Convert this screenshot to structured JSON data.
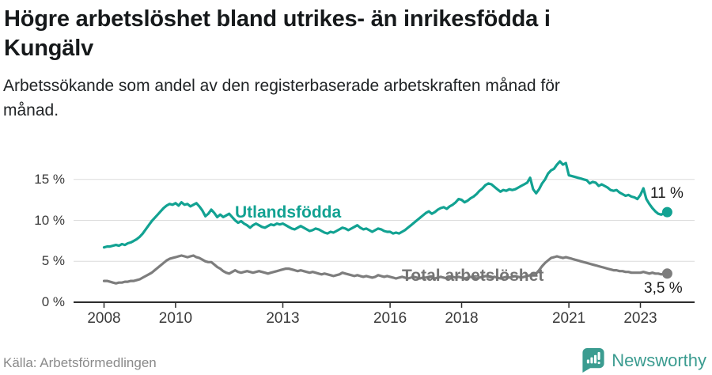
{
  "header": {
    "title_lines": [
      "Högre arbetslöshet bland utrikes- än inrikesfödda i",
      "Kungälv"
    ],
    "subtitle_lines": [
      "Arbetssökande som andel av den registerbaserade arbetskraften månad för",
      "månad."
    ]
  },
  "footer": {
    "source": "Källa: Arbetsförmedlingen",
    "logo_text": "Newsworthy"
  },
  "colors": {
    "foreign_born_line": "#12a292",
    "total_line": "#7d7d7d",
    "gridline": "#dcdcdc",
    "axis": "#2d2d2d",
    "logo_teal": "#3b9c90"
  },
  "chart_data": {
    "type": "line",
    "title": "Högre arbetslöshet bland utrikes- än inrikesfödda i Kungälv",
    "subtitle": "Arbetssökande som andel av den registerbaserade arbetskraften månad för månad.",
    "frequency": "monthly",
    "x_start": "2008-01",
    "x_end": "2023-10",
    "ylim": [
      0,
      17.5
    ],
    "grid": "horizontal",
    "y_ticks": [
      {
        "value": 0,
        "label": "0 %"
      },
      {
        "value": 5,
        "label": "5 %"
      },
      {
        "value": 10,
        "label": "10 %"
      },
      {
        "value": 15,
        "label": "15 %"
      }
    ],
    "x_ticks": [
      {
        "year": 2008,
        "label": "2008"
      },
      {
        "year": 2010,
        "label": "2010"
      },
      {
        "year": 2013,
        "label": "2013"
      },
      {
        "year": 2016,
        "label": "2016"
      },
      {
        "year": 2018,
        "label": "2018"
      },
      {
        "year": 2021,
        "label": "2021"
      },
      {
        "year": 2023,
        "label": "2023"
      }
    ],
    "series": [
      {
        "name": "Utlandsfödda",
        "color": "#12a292",
        "end_value": 11,
        "end_label": "11 %",
        "values": [
          6.7,
          6.8,
          6.8,
          6.9,
          7.0,
          6.9,
          7.1,
          7.0,
          7.2,
          7.3,
          7.5,
          7.7,
          8.0,
          8.4,
          8.9,
          9.4,
          9.9,
          10.3,
          10.7,
          11.1,
          11.5,
          11.8,
          12.0,
          11.9,
          12.1,
          11.8,
          12.2,
          11.9,
          12.0,
          11.7,
          11.9,
          12.1,
          11.7,
          11.2,
          10.5,
          10.8,
          11.3,
          10.9,
          10.4,
          10.7,
          10.4,
          10.6,
          10.8,
          10.4,
          10.0,
          9.7,
          9.9,
          9.6,
          9.4,
          9.1,
          9.4,
          9.6,
          9.4,
          9.2,
          9.1,
          9.3,
          9.5,
          9.4,
          9.6,
          9.5,
          9.6,
          9.4,
          9.2,
          9.0,
          8.9,
          9.1,
          9.3,
          9.1,
          8.9,
          8.7,
          8.8,
          9.0,
          8.9,
          8.7,
          8.5,
          8.4,
          8.6,
          8.5,
          8.7,
          8.9,
          9.1,
          9.0,
          8.8,
          9.0,
          9.2,
          9.4,
          9.1,
          8.9,
          9.0,
          8.8,
          8.6,
          8.8,
          9.0,
          8.9,
          8.7,
          8.6,
          8.6,
          8.4,
          8.5,
          8.4,
          8.6,
          8.8,
          9.1,
          9.4,
          9.7,
          10.0,
          10.3,
          10.6,
          10.9,
          11.1,
          10.8,
          11.0,
          11.3,
          11.5,
          11.6,
          11.4,
          11.7,
          11.9,
          12.2,
          12.6,
          12.5,
          12.2,
          12.4,
          12.7,
          12.9,
          13.2,
          13.6,
          13.9,
          14.3,
          14.5,
          14.4,
          14.1,
          13.8,
          13.5,
          13.7,
          13.6,
          13.8,
          13.7,
          13.8,
          14.0,
          14.2,
          14.4,
          14.6,
          15.2,
          13.8,
          13.3,
          13.8,
          14.5,
          15.0,
          15.7,
          16.1,
          16.3,
          16.8,
          17.2,
          16.8,
          17.0,
          15.5,
          15.4,
          15.3,
          15.2,
          15.1,
          15.0,
          14.9,
          14.5,
          14.7,
          14.6,
          14.2,
          14.4,
          14.2,
          14.0,
          13.7,
          13.6,
          13.7,
          13.4,
          13.2,
          13.0,
          13.1,
          12.9,
          12.8,
          12.6,
          13.1,
          13.9,
          12.6,
          12.0,
          11.5,
          11.1,
          10.8,
          10.7,
          10.9,
          11.0
        ]
      },
      {
        "name": "Total arbetslöshet",
        "color": "#7d7d7d",
        "end_value": 3.5,
        "end_label": "3,5 %",
        "values": [
          2.6,
          2.6,
          2.5,
          2.4,
          2.3,
          2.4,
          2.4,
          2.5,
          2.5,
          2.6,
          2.6,
          2.7,
          2.8,
          3.0,
          3.2,
          3.4,
          3.6,
          3.9,
          4.2,
          4.5,
          4.8,
          5.1,
          5.3,
          5.4,
          5.5,
          5.6,
          5.7,
          5.6,
          5.5,
          5.6,
          5.7,
          5.5,
          5.4,
          5.2,
          5.0,
          4.9,
          4.9,
          4.6,
          4.3,
          4.1,
          3.8,
          3.6,
          3.5,
          3.7,
          3.9,
          3.7,
          3.6,
          3.7,
          3.8,
          3.7,
          3.6,
          3.7,
          3.8,
          3.7,
          3.6,
          3.5,
          3.6,
          3.7,
          3.8,
          3.9,
          4.0,
          4.1,
          4.1,
          4.0,
          3.9,
          3.8,
          3.9,
          3.8,
          3.7,
          3.6,
          3.7,
          3.6,
          3.5,
          3.4,
          3.5,
          3.4,
          3.3,
          3.2,
          3.3,
          3.4,
          3.6,
          3.5,
          3.4,
          3.3,
          3.2,
          3.3,
          3.2,
          3.1,
          3.2,
          3.1,
          3.0,
          3.1,
          3.3,
          3.2,
          3.1,
          3.2,
          3.1,
          3.0,
          2.9,
          3.0,
          3.1,
          3.0,
          2.9,
          3.0,
          3.1,
          3.0,
          2.9,
          3.0,
          3.0,
          3.1,
          3.0,
          2.9,
          3.0,
          3.1,
          3.0,
          2.9,
          3.0,
          3.1,
          3.0,
          3.1,
          3.0,
          2.9,
          3.0,
          3.1,
          3.0,
          2.9,
          3.0,
          3.1,
          3.2,
          3.1,
          3.0,
          3.1,
          3.0,
          2.9,
          3.0,
          3.1,
          3.0,
          3.1,
          3.2,
          3.1,
          3.0,
          3.1,
          3.2,
          3.3,
          3.4,
          3.5,
          3.9,
          4.4,
          4.8,
          5.1,
          5.4,
          5.5,
          5.6,
          5.5,
          5.4,
          5.5,
          5.4,
          5.3,
          5.2,
          5.1,
          5.0,
          4.9,
          4.8,
          4.7,
          4.6,
          4.5,
          4.4,
          4.3,
          4.2,
          4.1,
          4.0,
          3.9,
          3.9,
          3.8,
          3.8,
          3.7,
          3.7,
          3.6,
          3.6,
          3.6,
          3.6,
          3.7,
          3.6,
          3.5,
          3.6,
          3.5,
          3.5,
          3.4,
          3.5,
          3.5
        ]
      }
    ]
  }
}
